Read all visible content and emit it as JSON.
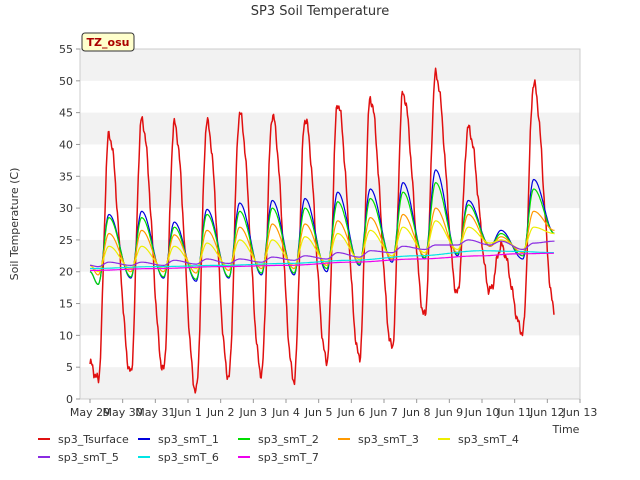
{
  "chart_data": {
    "type": "line",
    "title": "SP3 Soil Temperature",
    "xlabel": "Time",
    "ylabel": "Soil Temperature (C)",
    "badge": "TZ_osu",
    "ylim": [
      0,
      55
    ],
    "yticks": [
      0,
      5,
      10,
      15,
      20,
      25,
      30,
      35,
      40,
      45,
      50,
      55
    ],
    "xlim": [
      0,
      15
    ],
    "xticks": [
      {
        "x": 0,
        "label": "May 29"
      },
      {
        "x": 1,
        "label": "May 30"
      },
      {
        "x": 2,
        "label": "May 31"
      },
      {
        "x": 3,
        "label": "Jun 1"
      },
      {
        "x": 4,
        "label": "Jun 2"
      },
      {
        "x": 5,
        "label": "Jun 3"
      },
      {
        "x": 6,
        "label": "Jun 4"
      },
      {
        "x": 7,
        "label": "Jun 5"
      },
      {
        "x": 8,
        "label": "Jun 6"
      },
      {
        "x": 9,
        "label": "Jun 7"
      },
      {
        "x": 10,
        "label": "Jun 8"
      },
      {
        "x": 11,
        "label": "Jun 9"
      },
      {
        "x": 12,
        "label": "Jun 10"
      },
      {
        "x": 13,
        "label": "Jun 11"
      },
      {
        "x": 14,
        "label": "Jun 12"
      },
      {
        "x": 15,
        "label": "Jun 13"
      }
    ],
    "series": [
      {
        "name": "sp3_Tsurface",
        "color": "#e01010",
        "width": 1.5,
        "peaks": [
          41.5,
          43.8,
          43.2,
          43.4,
          44.8,
          44.5,
          44.0,
          46.5,
          47.2,
          48.0,
          51.0,
          42.5,
          24.0,
          49.5
        ],
        "mins": [
          3.0,
          4.0,
          4.5,
          1.2,
          3.5,
          4.0,
          3.0,
          6.0,
          6.5,
          8.0,
          13.0,
          16.5,
          17.0,
          10.5
        ],
        "start": 5.5,
        "end": 14.0
      },
      {
        "name": "sp3_smT_1",
        "color": "#0000dd",
        "width": 1.2,
        "peaks": [
          29.0,
          29.5,
          27.8,
          29.8,
          30.8,
          31.2,
          31.5,
          32.5,
          33.0,
          34.0,
          36.0,
          31.2,
          26.5,
          34.5
        ],
        "mins": [
          18.0,
          19.0,
          19.0,
          18.5,
          19.0,
          19.5,
          19.5,
          20.0,
          21.0,
          21.5,
          22.0,
          22.5,
          24.0,
          22.0
        ],
        "start": 20.0,
        "end": 26.0
      },
      {
        "name": "sp3_smT_2",
        "color": "#00dd00",
        "width": 1.2,
        "peaks": [
          28.5,
          28.5,
          27.0,
          29.0,
          29.5,
          30.0,
          30.0,
          31.0,
          31.5,
          32.5,
          34.0,
          30.5,
          26.0,
          33.0
        ],
        "mins": [
          18.0,
          19.2,
          19.2,
          18.8,
          19.2,
          19.8,
          19.8,
          20.5,
          21.2,
          21.8,
          22.2,
          22.8,
          24.0,
          22.5
        ],
        "start": 20.0,
        "end": 26.0
      },
      {
        "name": "sp3_smT_3",
        "color": "#ff9900",
        "width": 1.2,
        "peaks": [
          26.0,
          26.5,
          25.8,
          26.5,
          27.0,
          27.5,
          27.5,
          28.0,
          28.5,
          29.0,
          30.0,
          29.0,
          25.5,
          29.5
        ],
        "mins": [
          19.5,
          20.0,
          20.0,
          19.8,
          20.2,
          20.5,
          20.5,
          21.0,
          21.5,
          22.0,
          22.5,
          23.0,
          24.0,
          23.0
        ],
        "start": 21.0,
        "end": 26.5
      },
      {
        "name": "sp3_smT_4",
        "color": "#eeee00",
        "width": 1.2,
        "peaks": [
          24.0,
          24.0,
          24.0,
          24.5,
          25.0,
          25.0,
          25.5,
          26.0,
          26.5,
          27.0,
          28.0,
          27.0,
          25.0,
          27.0
        ],
        "mins": [
          20.0,
          20.5,
          20.5,
          20.5,
          20.8,
          21.0,
          21.0,
          21.5,
          22.0,
          22.5,
          23.0,
          23.5,
          24.5,
          23.5
        ],
        "start": 21.0,
        "end": 26.0
      },
      {
        "name": "sp3_smT_5",
        "color": "#8a2be2",
        "width": 1.2,
        "peaks": [
          21.5,
          21.5,
          21.8,
          22.0,
          22.0,
          22.3,
          22.5,
          23.0,
          23.3,
          24.0,
          24.2,
          25.0,
          24.8,
          24.5
        ],
        "mins": [
          20.8,
          21.0,
          21.0,
          21.2,
          21.3,
          21.5,
          21.8,
          22.0,
          22.3,
          23.0,
          23.5,
          24.2,
          24.2,
          23.5
        ],
        "start": 21.0,
        "end": 24.8
      },
      {
        "name": "sp3_smT_6",
        "color": "#00e5e5",
        "width": 1.2,
        "poly": [
          [
            0,
            20.5
          ],
          [
            2,
            20.8
          ],
          [
            4,
            21.0
          ],
          [
            6,
            21.3
          ],
          [
            8,
            21.8
          ],
          [
            10,
            22.5
          ],
          [
            12,
            23.3
          ],
          [
            13,
            23.2
          ],
          [
            14.2,
            23.0
          ]
        ]
      },
      {
        "name": "sp3_smT_7",
        "color": "#ee00ee",
        "width": 1.2,
        "poly": [
          [
            0,
            20.2
          ],
          [
            2,
            20.5
          ],
          [
            4,
            20.8
          ],
          [
            6,
            21.0
          ],
          [
            8,
            21.5
          ],
          [
            10,
            22.0
          ],
          [
            12,
            22.5
          ],
          [
            13,
            22.8
          ],
          [
            14.2,
            22.9
          ]
        ]
      }
    ],
    "legend": [
      {
        "name": "sp3_Tsurface",
        "color": "#e01010"
      },
      {
        "name": "sp3_smT_1",
        "color": "#0000dd"
      },
      {
        "name": "sp3_smT_2",
        "color": "#00dd00"
      },
      {
        "name": "sp3_smT_3",
        "color": "#ff9900"
      },
      {
        "name": "sp3_smT_4",
        "color": "#eeee00"
      },
      {
        "name": "sp3_smT_5",
        "color": "#8a2be2"
      },
      {
        "name": "sp3_smT_6",
        "color": "#00e5e5"
      },
      {
        "name": "sp3_smT_7",
        "color": "#ee00ee"
      }
    ],
    "grid": "horizontal-bands",
    "legend_placement": "bottom"
  }
}
